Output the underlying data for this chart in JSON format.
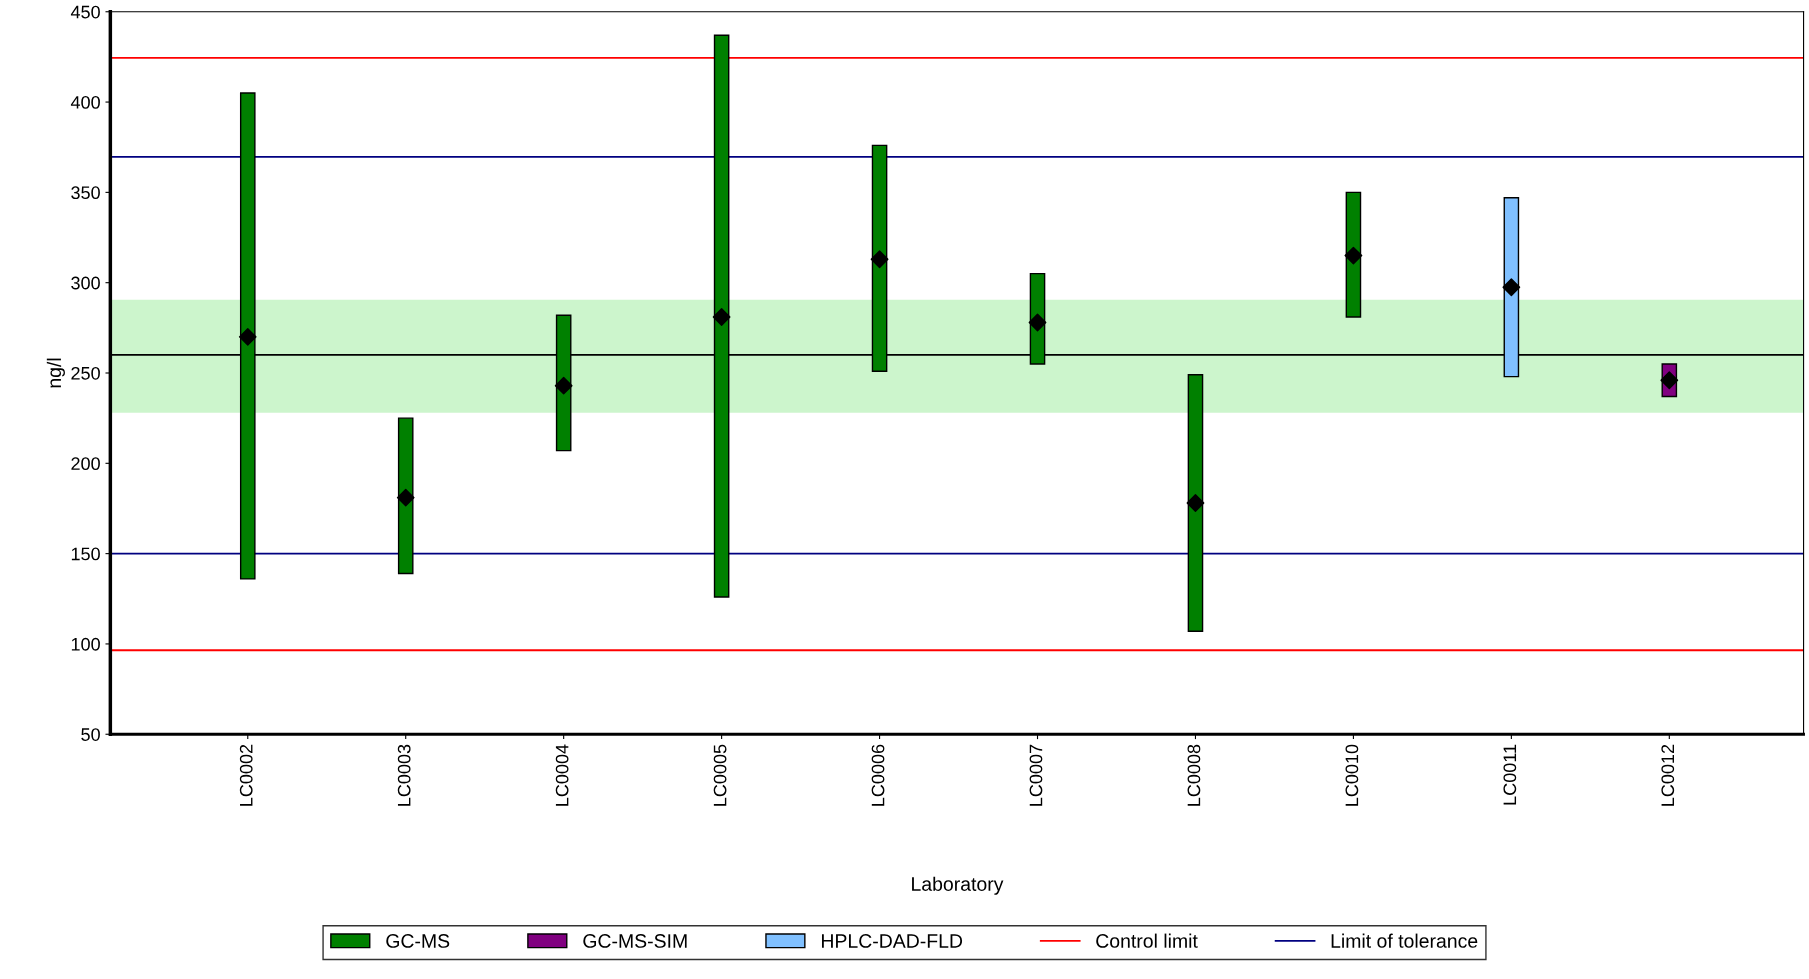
{
  "chart_data": {
    "type": "bar",
    "xlabel": "Laboratory",
    "ylabel": "ng/l",
    "categories": [
      "LC0002",
      "LC0003",
      "LC0004",
      "LC0005",
      "LC0006",
      "LC0007",
      "LC0008",
      "LC0010",
      "LC0011",
      "LC0012"
    ],
    "series": [
      {
        "name": "GC-MS",
        "color": "#008000",
        "base": [
          136,
          139,
          207,
          126,
          251,
          255,
          107,
          281,
          null,
          null
        ],
        "values": [
          269,
          86,
          75,
          311,
          125,
          50,
          142,
          69,
          null,
          null
        ]
      },
      {
        "name": "GC-MS-SIM",
        "color": "#800080",
        "base": [
          null,
          null,
          null,
          null,
          null,
          null,
          null,
          null,
          null,
          237
        ],
        "values": [
          null,
          null,
          null,
          null,
          null,
          null,
          null,
          null,
          null,
          18
        ]
      },
      {
        "name": "HPLC-DAD-FLD",
        "color": "#80c0ff",
        "base": [
          null,
          null,
          null,
          null,
          null,
          null,
          null,
          null,
          248,
          null
        ],
        "values": [
          null,
          null,
          null,
          null,
          null,
          null,
          null,
          null,
          99,
          null
        ]
      },
      {
        "type": "scatter",
        "color": "#000000",
        "marker": "diamond",
        "values": [
          270,
          181,
          243,
          281,
          313,
          278,
          178,
          315,
          297.5,
          246
        ]
      }
    ],
    "ylim": [
      50,
      450
    ],
    "yticks": [
      50,
      100,
      150,
      200,
      250,
      300,
      350,
      400,
      450
    ],
    "ref_lines": [
      {
        "axis": "y",
        "value": 424.5,
        "label": "Control limit",
        "color": "#ff0000"
      },
      {
        "axis": "y",
        "value": 96.5,
        "color": "#ff0000"
      },
      {
        "axis": "y",
        "value": 369.6,
        "label": "Limit of tolerance",
        "color": "#000080"
      },
      {
        "axis": "y",
        "value": 150,
        "color": "#000080"
      },
      {
        "axis": "y",
        "value": 260,
        "color": "#000000"
      }
    ],
    "bands": [
      {
        "axis": "y",
        "from": 228,
        "to": 290.5,
        "color": "#ccf5cc"
      }
    ],
    "grid": false,
    "legend": "bottom"
  }
}
